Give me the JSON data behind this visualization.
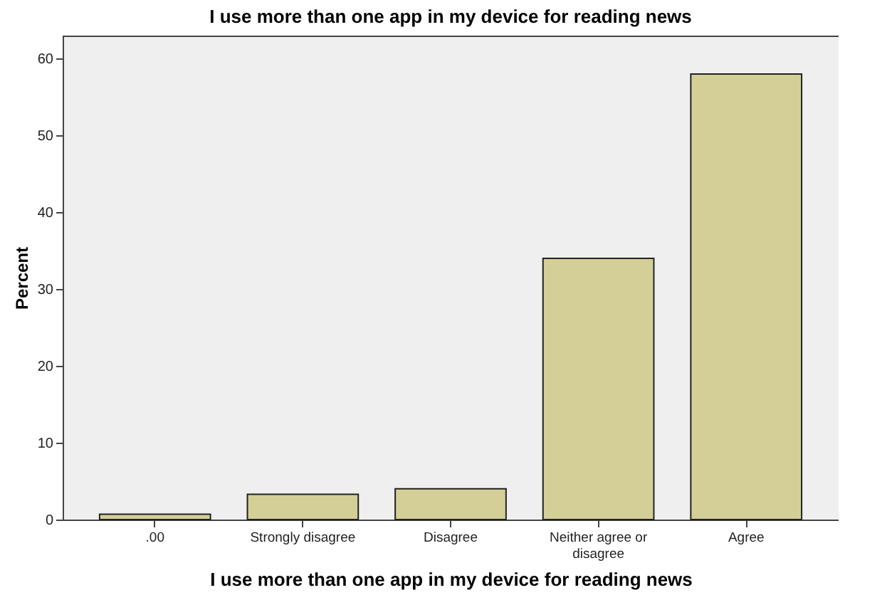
{
  "chart_data": {
    "type": "bar",
    "title": "I use more than one app in my device for reading news",
    "xlabel": "I use more than one app in my device for reading news",
    "ylabel": "Percent",
    "categories": [
      ".00",
      "Strongly disagree",
      "Disagree",
      "Neither agree or disagree",
      "Agree"
    ],
    "values": [
      0.7,
      3.3,
      4.0,
      34.0,
      58.0
    ],
    "color": "#d3cf97",
    "ylim": [
      0,
      63
    ],
    "yticks": [
      0,
      10,
      20,
      30,
      40,
      50,
      60
    ],
    "grid": false
  }
}
